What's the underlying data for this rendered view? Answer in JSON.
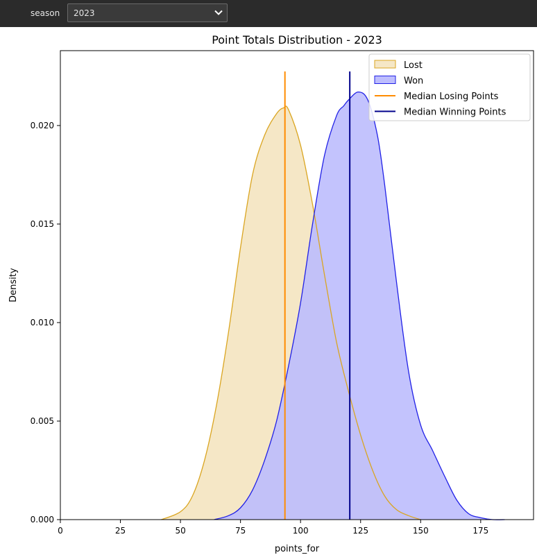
{
  "toolbar": {
    "season_label": "season",
    "season_value": "2023",
    "season_icon": "chevron-down-icon"
  },
  "chart_data": {
    "type": "area",
    "title": "Point Totals Distribution - 2023",
    "xlabel": "points_for",
    "ylabel": "Density",
    "xlim": [
      0,
      197
    ],
    "ylim": [
      0,
      0.0238
    ],
    "xticks": [
      0,
      25,
      50,
      75,
      100,
      125,
      150,
      175
    ],
    "yticks": [
      0.0,
      0.005,
      0.01,
      0.015,
      0.02
    ],
    "xtick_labels": [
      "0",
      "25",
      "50",
      "75",
      "100",
      "125",
      "150",
      "175"
    ],
    "ytick_labels": [
      "0.000",
      "0.005",
      "0.010",
      "0.015",
      "0.020"
    ],
    "grid": false,
    "legend_position": "top-right",
    "series": [
      {
        "name": "Lost",
        "kind": "kde",
        "fill": "#f5e7c6",
        "stroke": "#daa520",
        "x": [
          42,
          50,
          55,
          60,
          65,
          70,
          75,
          80,
          85,
          90,
          93,
          95,
          100,
          105,
          110,
          115,
          120,
          125,
          130,
          135,
          140,
          145,
          150
        ],
        "y": [
          0.0,
          0.0004,
          0.0012,
          0.003,
          0.0058,
          0.0095,
          0.0138,
          0.0175,
          0.0195,
          0.0206,
          0.0209,
          0.0208,
          0.019,
          0.016,
          0.0124,
          0.009,
          0.0065,
          0.0043,
          0.0025,
          0.0012,
          0.0005,
          0.0002,
          0.0
        ]
      },
      {
        "name": "Won",
        "kind": "kde",
        "fill": "#bdbdfd",
        "stroke": "#2020e6",
        "x": [
          64,
          70,
          75,
          80,
          85,
          90,
          95,
          100,
          105,
          110,
          115,
          118,
          120,
          124,
          128,
          132,
          135,
          140,
          145,
          150,
          155,
          160,
          165,
          170,
          175,
          180,
          185
        ],
        "y": [
          0.0,
          0.0002,
          0.0006,
          0.0015,
          0.003,
          0.005,
          0.0078,
          0.011,
          0.015,
          0.0185,
          0.0205,
          0.021,
          0.0213,
          0.0217,
          0.0213,
          0.0195,
          0.017,
          0.012,
          0.0075,
          0.0048,
          0.0035,
          0.0022,
          0.001,
          0.0003,
          0.0001,
          0.0,
          0.0
        ]
      }
    ],
    "vlines": [
      {
        "name": "Median Losing Points",
        "x": 93.5,
        "color": "#ff8c00"
      },
      {
        "name": "Median Winning Points",
        "x": 120.5,
        "color": "#00008b"
      }
    ]
  }
}
